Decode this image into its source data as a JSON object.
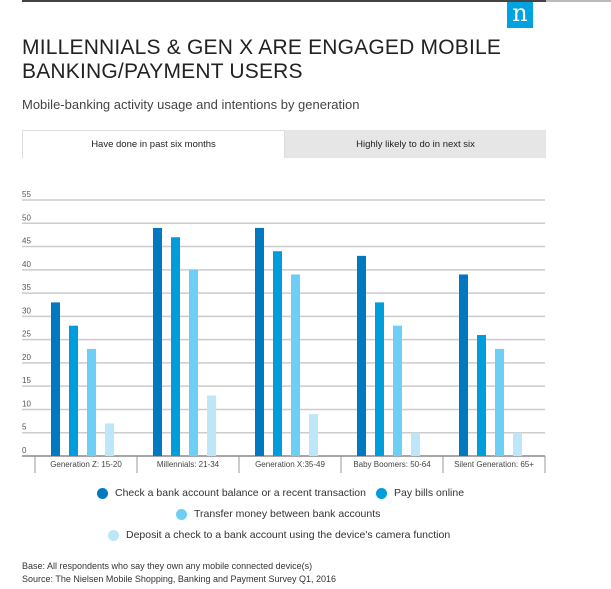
{
  "header": {
    "logo": "n",
    "title_line1": "MILLENNIALS & GEN X ARE ENGAGED MOBILE",
    "title_line2": "BANKING/PAYMENT USERS",
    "subtitle": "Mobile-banking activity usage and intentions by generation"
  },
  "tabs": [
    {
      "label": "Have done in past six months",
      "active": true
    },
    {
      "label": "Highly likely to do in next six",
      "active": false
    }
  ],
  "colors": {
    "s0": "#0079c1",
    "s1": "#009ddc",
    "s2": "#6dcff6",
    "s3": "#bde6f9",
    "logo": "#00a3e0"
  },
  "chart_data": {
    "type": "bar",
    "title": "",
    "xlabel": "",
    "ylabel": "",
    "ylim": [
      0,
      55
    ],
    "yticks": [
      0,
      5,
      10,
      15,
      20,
      25,
      30,
      35,
      40,
      45,
      50,
      55
    ],
    "categories": [
      "Generation Z: 15-20",
      "Millennials: 21-34",
      "Generation X:35-49",
      "Baby Boomers: 50-64",
      "Silent Generation: 65+"
    ],
    "series": [
      {
        "name": "Check a bank account balance or a recent transaction",
        "values": [
          33,
          49,
          49,
          43,
          39
        ]
      },
      {
        "name": "Pay bills online",
        "values": [
          28,
          47,
          44,
          33,
          26
        ]
      },
      {
        "name": "Transfer money between bank accounts",
        "values": [
          23,
          40,
          39,
          28,
          23
        ]
      },
      {
        "name": "Deposit a check to a bank account using the device's camera function",
        "values": [
          7,
          13,
          9,
          5,
          5
        ]
      }
    ],
    "grid": true,
    "legend_placement": "bottom"
  },
  "footer": {
    "base": "Base: All respondents who say they own any mobile connected device(s)",
    "source": "Source: The Nielsen Mobile Shopping, Banking and Payment Survey Q1, 2016"
  }
}
